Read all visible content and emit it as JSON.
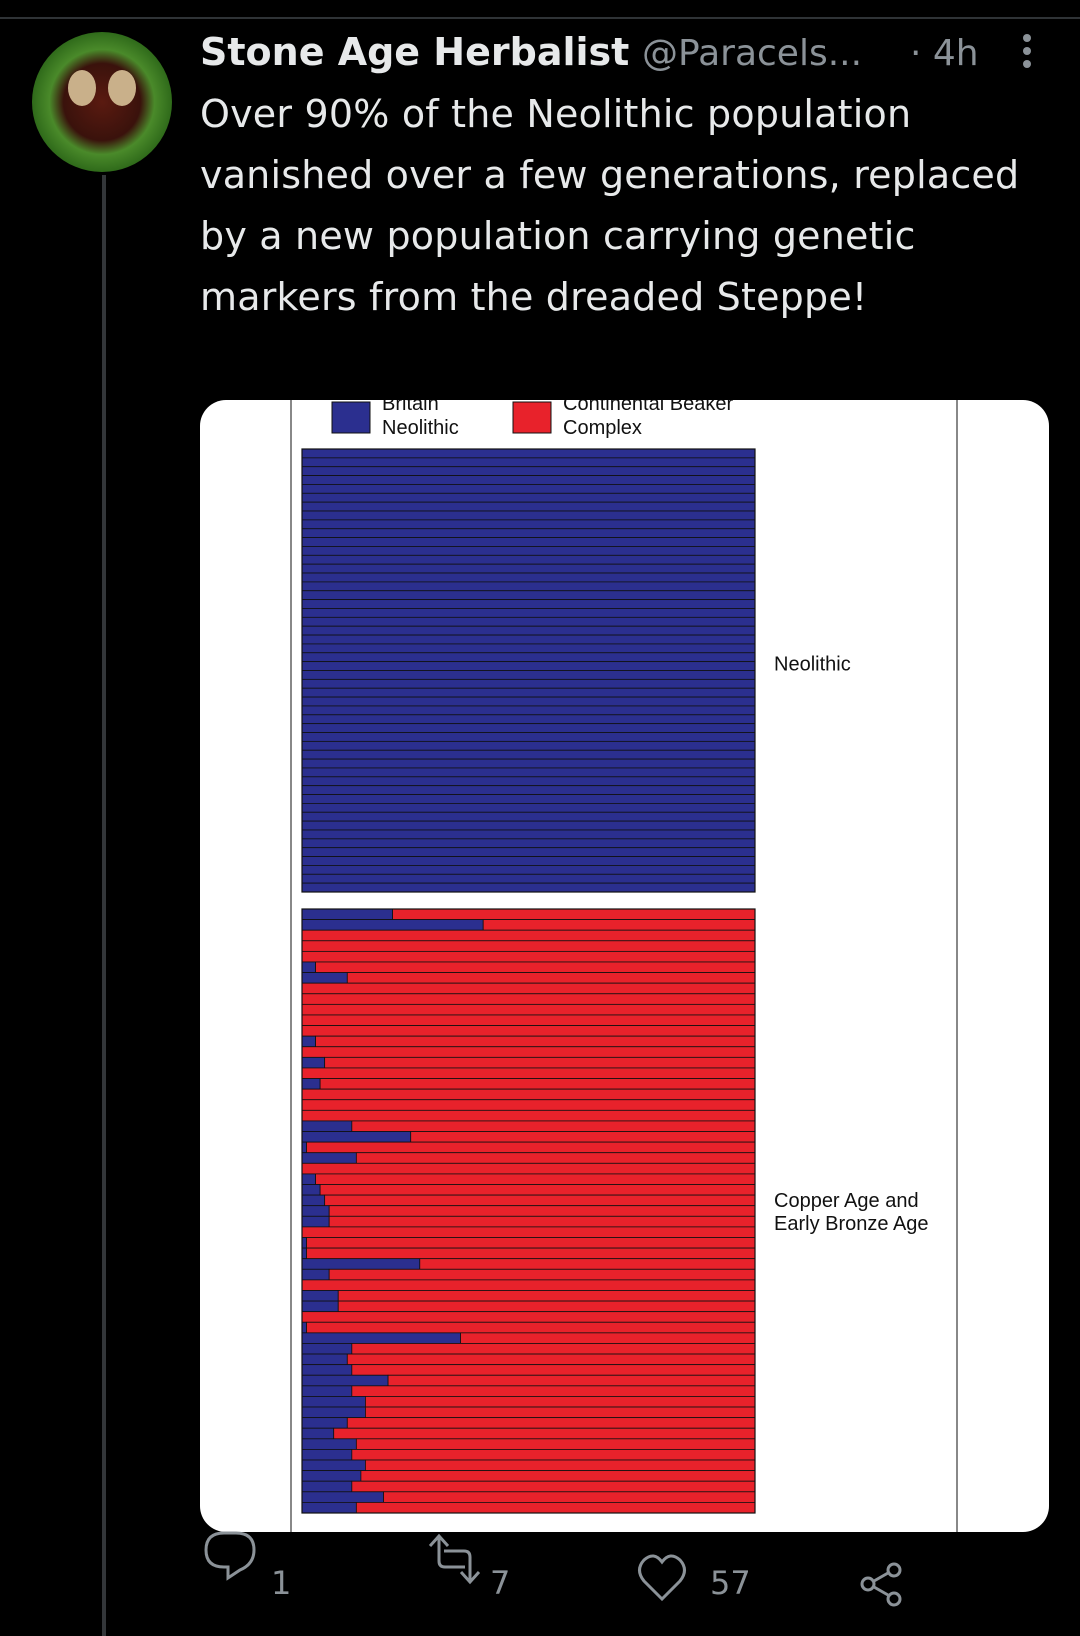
{
  "tweet": {
    "author": "Stone Age Herbalist",
    "handle": "@Paracels...",
    "time": "· 4h",
    "text": "Over 90% of the Neolithic population vanished over a few generations, replaced by a new population carrying genetic markers from the dreaded Steppe!",
    "replies": "1",
    "retweets": "7",
    "likes": "57"
  },
  "chart_data": {
    "type": "stacked-bar",
    "orientation": "horizontal",
    "legend": [
      {
        "name": "Britain Neolithic",
        "color": "#2b2f8f"
      },
      {
        "name": "Continental Beaker Complex",
        "color": "#e8222b"
      }
    ],
    "xlim": [
      0,
      100
    ],
    "panels": [
      {
        "label": "Neolithic",
        "series": [
          {
            "values": [
              100,
              100,
              100,
              100,
              100,
              100,
              100,
              100,
              100,
              100,
              100,
              100,
              100,
              100,
              100,
              100,
              100,
              100,
              100,
              100,
              100,
              100,
              100,
              100,
              100,
              100,
              100,
              100,
              100,
              100,
              100,
              100,
              100,
              100,
              100,
              100,
              100,
              100,
              100,
              100,
              100,
              100,
              100,
              100,
              100,
              100,
              100,
              100,
              100,
              100
            ]
          },
          {
            "values": [
              0,
              0,
              0,
              0,
              0,
              0,
              0,
              0,
              0,
              0,
              0,
              0,
              0,
              0,
              0,
              0,
              0,
              0,
              0,
              0,
              0,
              0,
              0,
              0,
              0,
              0,
              0,
              0,
              0,
              0,
              0,
              0,
              0,
              0,
              0,
              0,
              0,
              0,
              0,
              0,
              0,
              0,
              0,
              0,
              0,
              0,
              0,
              0,
              0,
              0
            ]
          }
        ]
      },
      {
        "label": "Copper Age and Early Bronze Age",
        "series": [
          {
            "values": [
              20,
              40,
              0,
              0,
              0,
              3,
              10,
              0,
              0,
              0,
              0,
              0,
              3,
              0,
              5,
              0,
              4,
              0,
              0,
              0,
              11,
              24,
              1,
              12,
              0,
              3,
              4,
              5,
              6,
              6,
              0,
              1,
              1,
              26,
              6,
              0,
              8,
              8,
              0,
              1,
              35,
              11,
              10,
              11,
              19,
              11,
              14,
              14,
              10,
              7,
              12,
              11,
              14,
              13,
              11,
              18,
              12
            ]
          },
          {
            "values": [
              80,
              60,
              100,
              100,
              100,
              97,
              90,
              100,
              100,
              100,
              100,
              100,
              97,
              100,
              95,
              100,
              96,
              100,
              100,
              100,
              89,
              76,
              99,
              88,
              100,
              97,
              96,
              95,
              94,
              94,
              100,
              99,
              99,
              74,
              94,
              100,
              92,
              92,
              100,
              99,
              65,
              89,
              90,
              89,
              81,
              89,
              86,
              86,
              90,
              93,
              88,
              89,
              86,
              87,
              89,
              82,
              88
            ]
          }
        ]
      }
    ]
  }
}
